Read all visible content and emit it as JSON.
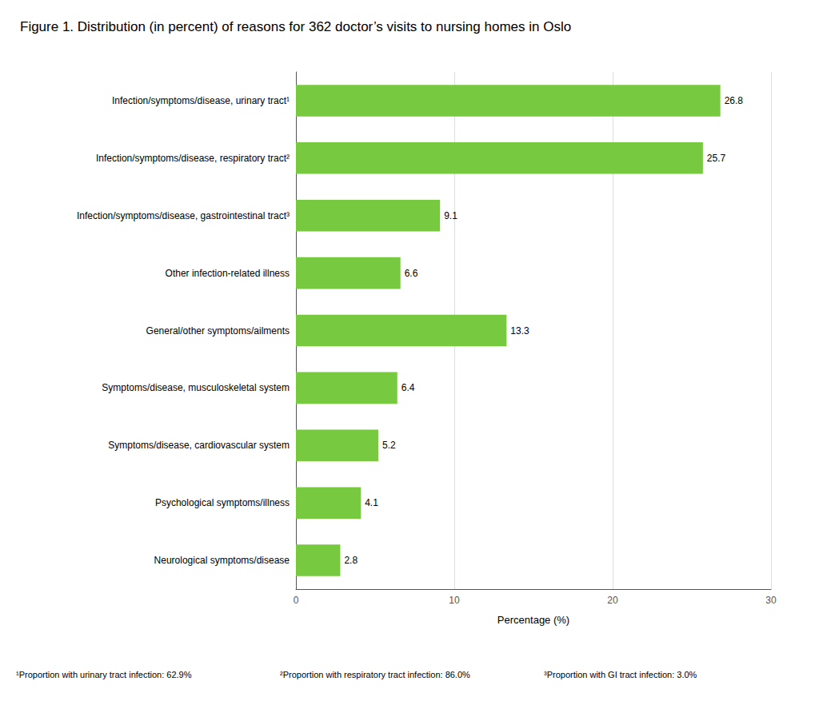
{
  "chart_data": {
    "type": "bar",
    "orientation": "horizontal",
    "title": "Figure 1. Distribution (in percent) of reasons for 362 doctor’s visits to nursing homes in Oslo",
    "categories": [
      "Infection/symptoms/disease, urinary tract¹",
      "Infection/symptoms/disease, respiratory tract²",
      "Infection/symptoms/disease, gastrointestinal tract³",
      "Other infection-related illness",
      "General/other symptoms/ailments",
      "Symptoms/disease, musculoskeletal system",
      "Symptoms/disease, cardiovascular system",
      "Psychological symptoms/illness",
      "Neurological symptoms/disease"
    ],
    "values": [
      26.8,
      25.7,
      9.1,
      6.6,
      13.3,
      6.4,
      5.2,
      4.1,
      2.8
    ],
    "color": "#77C940",
    "xlabel": "Percentage (%)",
    "xlim": [
      0,
      30
    ],
    "xticks": [
      0,
      10,
      20,
      30
    ],
    "grid": true,
    "data_labels": true,
    "annotations": [
      "¹Proportion with urinary tract infection: 62.9%",
      "²Proportion with respiratory tract infection: 86.0%",
      "³Proportion with GI tract infection: 3.0%"
    ]
  }
}
